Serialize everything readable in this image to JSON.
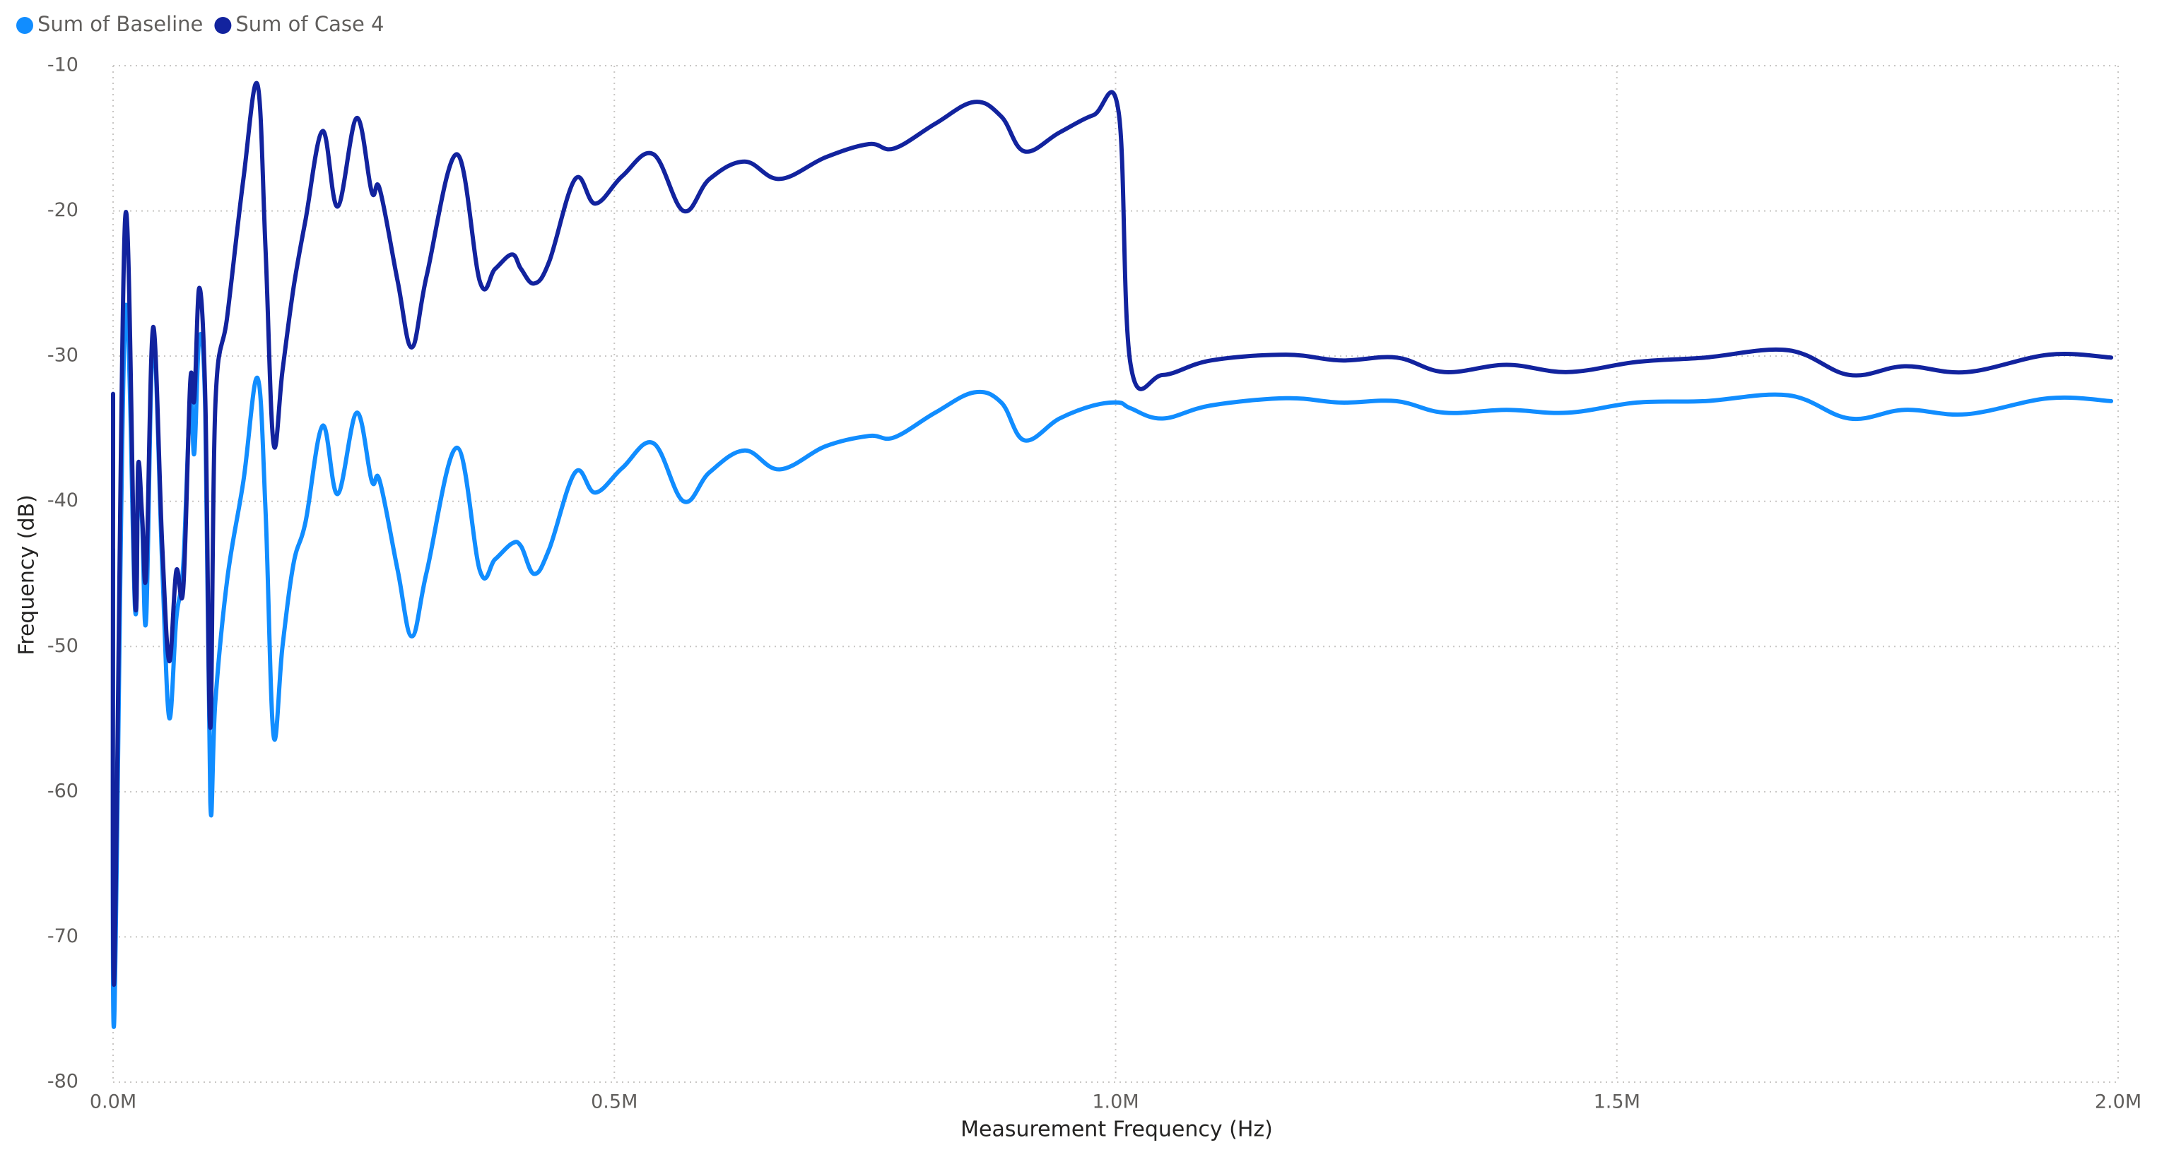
{
  "chart_data": {
    "type": "line",
    "x_label": "Measurement Frequency (Hz)",
    "y_label": "Frequency (dB)",
    "legend": "top-left",
    "grid": true,
    "xlim": [
      0,
      2000000
    ],
    "xticks": [
      {
        "value": 0,
        "label": "0.0M"
      },
      {
        "value": 500000,
        "label": "0.5M"
      },
      {
        "value": 1000000,
        "label": "1.0M"
      },
      {
        "value": 1500000,
        "label": "1.5M"
      },
      {
        "value": 2000000,
        "label": "2.0M"
      }
    ],
    "ylim": [
      -80,
      -10
    ],
    "yticks": [
      -80,
      -70,
      -60,
      -50,
      -40,
      -30,
      -20,
      -10
    ],
    "x": [
      0,
      1000,
      12000,
      22000,
      25000,
      29000,
      33000,
      40000,
      49000,
      56000,
      63000,
      70000,
      77000,
      81000,
      86000,
      92000,
      97000,
      102000,
      114000,
      130000,
      144000,
      152000,
      160000,
      169000,
      180000,
      192000,
      209000,
      224000,
      243000,
      258000,
      266000,
      284000,
      298000,
      313000,
      343000,
      366000,
      381000,
      398000,
      407000,
      420000,
      435000,
      461000,
      481000,
      508000,
      539000,
      569000,
      595000,
      630000,
      665000,
      711000,
      754000,
      779000,
      820000,
      859000,
      886000,
      909000,
      944000,
      978000,
      1003000,
      1015000,
      1047000,
      1095000,
      1170000,
      1225000,
      1280000,
      1328000,
      1390000,
      1451000,
      1520000,
      1588000,
      1671000,
      1732000,
      1787000,
      1849000,
      1931000,
      1993000
    ],
    "series": [
      {
        "name": "Sum of Baseline",
        "color": "#118dff",
        "values": [
          -43.3,
          -76,
          -27.2,
          -47.5,
          -38.6,
          -41.5,
          -48.1,
          -28.7,
          -44.4,
          -54.9,
          -48.1,
          -44.4,
          -32.9,
          -36.7,
          -28.7,
          -33.9,
          -60.7,
          -53.8,
          -45.3,
          -38.6,
          -31.5,
          -40.5,
          -56.1,
          -50,
          -44.3,
          -41.4,
          -34.8,
          -39.5,
          -33.9,
          -38.6,
          -38.6,
          -44.8,
          -49.3,
          -44.8,
          -36.3,
          -44.8,
          -44,
          -42.9,
          -43.1,
          -45,
          -43.3,
          -38,
          -39.4,
          -37.7,
          -36,
          -40,
          -38,
          -36.5,
          -37.8,
          -36.2,
          -35.5,
          -35.6,
          -33.9,
          -32.5,
          -33.2,
          -35.8,
          -34.3,
          -33.4,
          -33.2,
          -33.6,
          -34.3,
          -33.4,
          -32.9,
          -33.2,
          -33.1,
          -33.9,
          -33.7,
          -33.9,
          -33.2,
          -33.1,
          -32.7,
          -34.3,
          -33.7,
          -34,
          -32.9,
          -33.1
        ]
      },
      {
        "name": "Sum of Case 4",
        "color": "#12239e",
        "values": [
          -32.6,
          -73.2,
          -20.6,
          -47,
          -37.5,
          -41,
          -45,
          -28,
          -43,
          -51,
          -44.8,
          -46,
          -31.8,
          -33,
          -25.3,
          -33,
          -55.6,
          -33.4,
          -27.2,
          -17.8,
          -11.3,
          -22.5,
          -36,
          -31,
          -25.3,
          -20.6,
          -14.5,
          -19.7,
          -13.6,
          -18.7,
          -18.5,
          -24.9,
          -29.4,
          -24.4,
          -16.1,
          -24.9,
          -24,
          -23,
          -24,
          -25,
          -23.5,
          -17.8,
          -19.5,
          -17.6,
          -16.1,
          -20,
          -17.8,
          -16.6,
          -17.8,
          -16.3,
          -15.4,
          -15.7,
          -14,
          -12.5,
          -13.5,
          -15.9,
          -14.6,
          -13.4,
          -13.2,
          -30.6,
          -31.3,
          -30.3,
          -29.9,
          -30.3,
          -30.1,
          -31.1,
          -30.6,
          -31.1,
          -30.4,
          -30.1,
          -29.6,
          -31.3,
          -30.7,
          -31.1,
          -29.9,
          -30.1
        ]
      }
    ]
  }
}
